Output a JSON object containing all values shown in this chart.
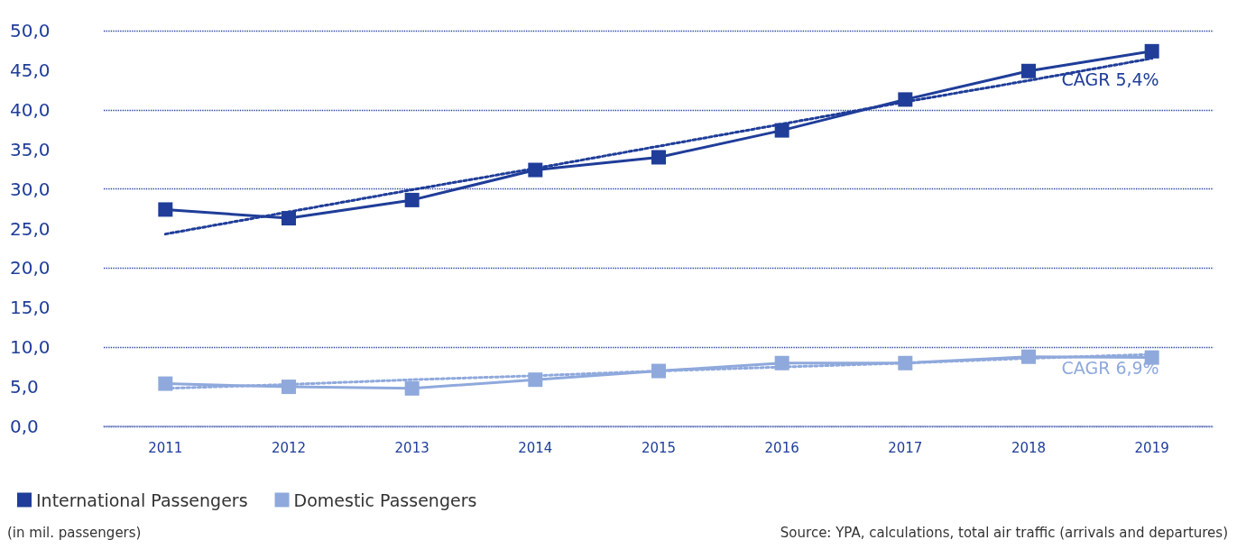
{
  "chart_data": {
    "type": "line",
    "categories": [
      "2011",
      "2012",
      "2013",
      "2014",
      "2015",
      "2016",
      "2017",
      "2018",
      "2019"
    ],
    "series": [
      {
        "name": "International Passengers",
        "color": "#1f3d99",
        "values": [
          27.4,
          26.3,
          28.6,
          32.4,
          34.0,
          37.4,
          41.3,
          44.9,
          47.4
        ],
        "marker": "square"
      },
      {
        "name": "Domestic Passengers",
        "color": "#8fa9dc",
        "values": [
          5.4,
          5.0,
          4.8,
          5.9,
          7.0,
          8.0,
          8.0,
          8.8,
          8.7
        ],
        "marker": "square"
      },
      {
        "name": "CAGR 5,4%",
        "color": "#1f3d99",
        "values": [
          24.3,
          27.1,
          29.9,
          32.6,
          35.4,
          38.2,
          41.0,
          43.7,
          46.5
        ],
        "line_style": "dotted",
        "marker": "none"
      },
      {
        "name": "CAGR 6,9%",
        "color": "#8fa9dc",
        "values": [
          4.8,
          5.3,
          5.9,
          6.4,
          7.0,
          7.5,
          8.0,
          8.6,
          9.1
        ],
        "line_style": "dotted",
        "marker": "none"
      }
    ],
    "ylim": [
      0,
      50
    ],
    "yticks": [
      {
        "value": 0,
        "label": "0,0"
      },
      {
        "value": 5,
        "label": "5,0"
      },
      {
        "value": 10,
        "label": "10,0"
      },
      {
        "value": 15,
        "label": "15,0"
      },
      {
        "value": 20,
        "label": "20,0"
      },
      {
        "value": 25,
        "label": "25,0"
      },
      {
        "value": 30,
        "label": "30,0"
      },
      {
        "value": 35,
        "label": "35,0"
      },
      {
        "value": 40,
        "label": "40,0"
      },
      {
        "value": 45,
        "label": "45,0"
      },
      {
        "value": 50,
        "label": "50,0"
      }
    ],
    "grid": "y",
    "legend": "bottom left",
    "annotations": [
      "(in mil. passengers)",
      "Source: YPA, calculations, total air traffic (arrivals and departures)"
    ]
  }
}
